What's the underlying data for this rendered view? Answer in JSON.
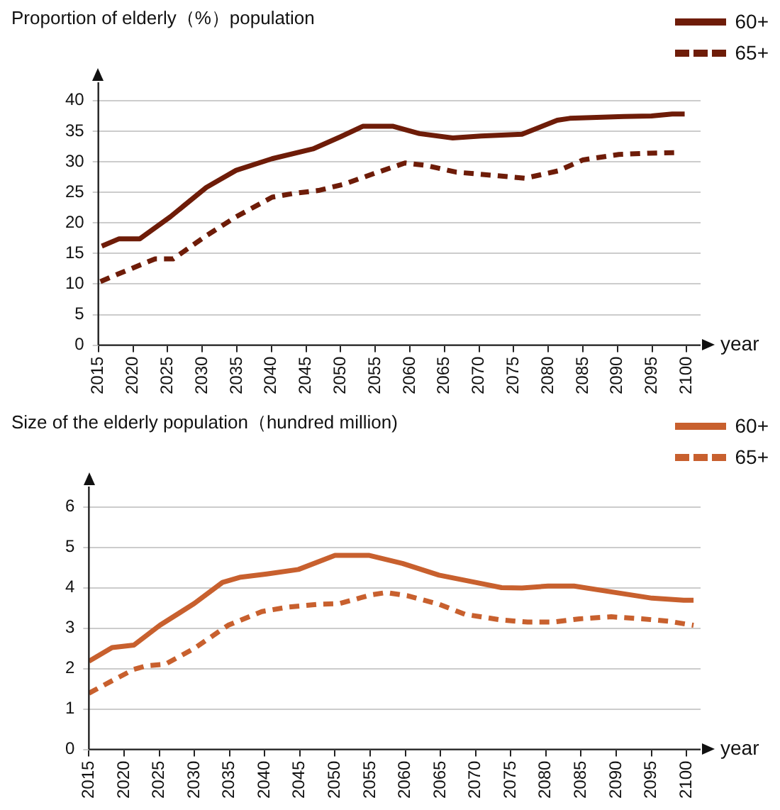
{
  "chart_data": [
    {
      "type": "line",
      "ylabel": "Proportion of elderly（%）population",
      "xlabel": "year",
      "xlim": [
        2015,
        2102
      ],
      "xticks": [
        2015,
        2020,
        2025,
        2030,
        2035,
        2040,
        2045,
        2050,
        2055,
        2060,
        2065,
        2070,
        2075,
        2080,
        2085,
        2090,
        2095,
        2100
      ],
      "ylim": [
        0,
        43
      ],
      "yticks": [
        0,
        5,
        10,
        15,
        20,
        25,
        30,
        35,
        40
      ],
      "grid": "y",
      "legend": "top right",
      "marker": "none",
      "series": [
        {
          "name": "60+",
          "color": "#6e1c08",
          "line_style": "solid",
          "x": [
            2015.5,
            2018,
            2021,
            2025.4,
            2030.6,
            2034.9,
            2040.1,
            2046,
            2050,
            2053.2,
            2057.6,
            2061.4,
            2066.2,
            2070.3,
            2076.2,
            2081.3,
            2083.1,
            2090.9,
            2094.9,
            2097.9,
            2099.7
          ],
          "values": [
            16.2,
            17.4,
            17.4,
            21,
            25.8,
            28.6,
            30.5,
            32.1,
            34.1,
            35.8,
            35.8,
            34.6,
            33.9,
            34.2,
            34.5,
            36.8,
            37.1,
            37.4,
            37.5,
            37.8,
            37.8
          ]
        },
        {
          "name": "65+",
          "color": "#6e1c08",
          "line_style": "dashed",
          "x": [
            2015.3,
            2018,
            2021,
            2023.2,
            2025.8,
            2030.6,
            2034.9,
            2040.1,
            2043.1,
            2046.8,
            2050.4,
            2054.9,
            2059.3,
            2062.3,
            2066.7,
            2071.8,
            2076.6,
            2081.4,
            2085,
            2090.2,
            2094.6,
            2098.6
          ],
          "values": [
            10.4,
            11.7,
            13.1,
            14.1,
            14.1,
            17.9,
            21,
            24.2,
            24.8,
            25.3,
            26.3,
            28.1,
            29.8,
            29.4,
            28.3,
            27.8,
            27.3,
            28.5,
            30.3,
            31.2,
            31.4,
            31.5
          ]
        }
      ]
    },
    {
      "type": "line",
      "ylabel": "Size of the elderly population（hundred million)",
      "xlabel": "year",
      "xlim": [
        2015,
        2102
      ],
      "xticks": [
        2015,
        2020,
        2025,
        2030,
        2035,
        2040,
        2045,
        2050,
        2055,
        2060,
        2065,
        2070,
        2075,
        2080,
        2085,
        2090,
        2095,
        2100
      ],
      "ylim": [
        0,
        6.5
      ],
      "yticks": [
        0,
        1,
        2,
        3,
        4,
        5,
        6
      ],
      "grid": "y",
      "legend": "top right",
      "marker": "none",
      "series": [
        {
          "name": "60+",
          "color": "#c8602e",
          "line_style": "solid",
          "x": [
            2015,
            2018.3,
            2021.4,
            2025.1,
            2030,
            2034,
            2036.6,
            2040.3,
            2044.8,
            2050,
            2054.8,
            2059.6,
            2064.8,
            2070,
            2073.7,
            2076.6,
            2080.3,
            2084,
            2089.9,
            2095.1,
            2099.6,
            2101
          ],
          "values": [
            2.18,
            2.52,
            2.58,
            3.07,
            3.61,
            4.13,
            4.26,
            4.34,
            4.45,
            4.8,
            4.8,
            4.6,
            4.31,
            4.13,
            4,
            3.99,
            4.04,
            4.04,
            3.88,
            3.74,
            3.69,
            3.69
          ]
        },
        {
          "name": "65+",
          "color": "#c8602e",
          "line_style": "dashed",
          "x": [
            2015,
            2018.1,
            2021.4,
            2023.3,
            2025.9,
            2030,
            2034.8,
            2039.6,
            2043.3,
            2047.7,
            2050.7,
            2055.1,
            2057.3,
            2060.3,
            2064.8,
            2068.5,
            2073.7,
            2077.4,
            2081.1,
            2084.8,
            2089.3,
            2093.7,
            2097.4,
            2101
          ],
          "values": [
            1.39,
            1.68,
            1.98,
            2.07,
            2.11,
            2.5,
            3.07,
            3.41,
            3.52,
            3.59,
            3.61,
            3.82,
            3.88,
            3.8,
            3.59,
            3.34,
            3.2,
            3.15,
            3.15,
            3.23,
            3.28,
            3.23,
            3.17,
            3.07
          ]
        }
      ]
    }
  ]
}
